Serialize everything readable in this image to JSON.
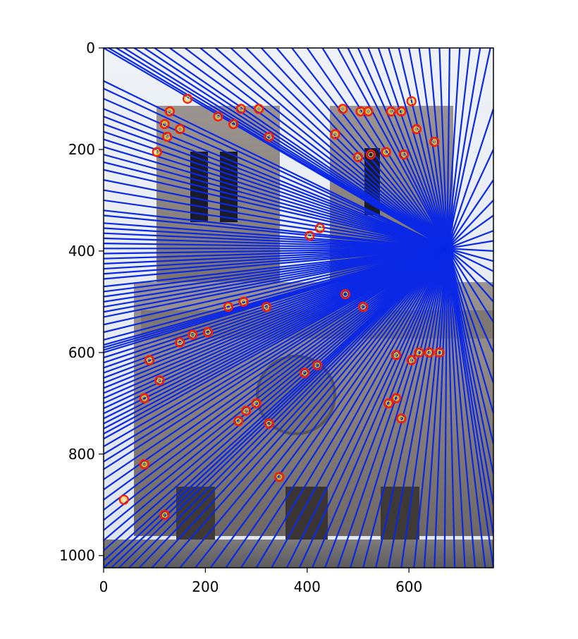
{
  "chart_data": {
    "type": "scatter",
    "description_kind": "image-with-overlay",
    "title": "",
    "xlabel": "",
    "ylabel": "",
    "xlim": [
      0,
      766
    ],
    "ylim": [
      1024,
      0
    ],
    "x_ticks": [
      0,
      200,
      400,
      600
    ],
    "y_ticks": [
      0,
      200,
      400,
      600,
      800,
      1000
    ],
    "x_tick_labels": [
      "0",
      "200",
      "400",
      "600"
    ],
    "y_tick_labels": [
      "0",
      "200",
      "400",
      "600",
      "800",
      "1000"
    ],
    "epipole": [
      675,
      395
    ],
    "line_color": "#0a28e6",
    "marker_color": "#ff1a00",
    "marker_inner_color": "#ffd000",
    "keypoints": [
      [
        165,
        100
      ],
      [
        130,
        125
      ],
      [
        120,
        150
      ],
      [
        125,
        175
      ],
      [
        105,
        205
      ],
      [
        150,
        160
      ],
      [
        270,
        120
      ],
      [
        305,
        120
      ],
      [
        325,
        175
      ],
      [
        255,
        150
      ],
      [
        225,
        135
      ],
      [
        470,
        120
      ],
      [
        455,
        170
      ],
      [
        505,
        125
      ],
      [
        520,
        125
      ],
      [
        565,
        125
      ],
      [
        605,
        105
      ],
      [
        585,
        125
      ],
      [
        615,
        160
      ],
      [
        500,
        215
      ],
      [
        525,
        210
      ],
      [
        555,
        205
      ],
      [
        590,
        210
      ],
      [
        650,
        185
      ],
      [
        425,
        355
      ],
      [
        405,
        370
      ],
      [
        475,
        485
      ],
      [
        510,
        510
      ],
      [
        245,
        510
      ],
      [
        275,
        500
      ],
      [
        320,
        510
      ],
      [
        205,
        560
      ],
      [
        175,
        565
      ],
      [
        150,
        580
      ],
      [
        90,
        615
      ],
      [
        110,
        655
      ],
      [
        80,
        690
      ],
      [
        640,
        600
      ],
      [
        660,
        600
      ],
      [
        620,
        600
      ],
      [
        575,
        605
      ],
      [
        605,
        615
      ],
      [
        560,
        700
      ],
      [
        585,
        730
      ],
      [
        575,
        690
      ],
      [
        300,
        700
      ],
      [
        280,
        715
      ],
      [
        265,
        735
      ],
      [
        325,
        740
      ],
      [
        395,
        640
      ],
      [
        420,
        625
      ],
      [
        345,
        845
      ],
      [
        80,
        820
      ],
      [
        40,
        890
      ],
      [
        120,
        920
      ]
    ],
    "line_ends_left_x0": [
      65,
      80,
      100,
      120,
      135,
      150,
      165,
      180,
      195,
      210,
      225,
      240,
      260,
      280,
      300,
      320,
      330,
      345,
      355,
      365,
      375,
      385,
      395,
      405,
      415,
      425,
      435,
      445,
      455,
      470,
      480,
      490,
      500,
      510,
      520,
      530,
      545,
      560,
      575,
      585,
      590,
      595,
      600,
      610,
      620,
      630,
      640,
      650,
      660,
      670,
      680,
      690,
      700,
      710,
      720,
      730,
      740,
      750,
      760,
      770,
      785,
      800,
      815,
      830,
      850,
      870,
      890,
      910,
      930,
      950,
      970,
      990,
      1010,
      1024
    ],
    "line_ends_top_x": [
      0,
      10,
      25,
      40,
      60,
      80,
      100,
      130,
      160,
      190,
      220,
      250,
      280,
      310,
      340,
      370,
      400,
      430,
      460,
      480,
      500,
      520,
      540,
      560,
      580,
      600,
      620,
      640,
      660,
      680,
      700,
      720,
      740,
      760
    ],
    "line_ends_bottom_x": [
      0,
      15,
      30,
      50,
      70,
      95,
      120,
      150,
      180,
      210,
      240,
      270,
      300,
      330,
      360,
      385,
      410,
      435,
      460,
      485,
      510,
      535,
      560,
      585,
      610,
      630,
      650,
      670,
      690,
      710,
      730,
      750,
      766
    ],
    "line_ends_right_y": [
      120,
      200,
      260,
      300,
      330,
      360,
      380,
      400,
      420,
      440,
      470,
      500,
      540,
      600,
      660,
      720,
      780,
      840,
      900,
      960
    ]
  }
}
